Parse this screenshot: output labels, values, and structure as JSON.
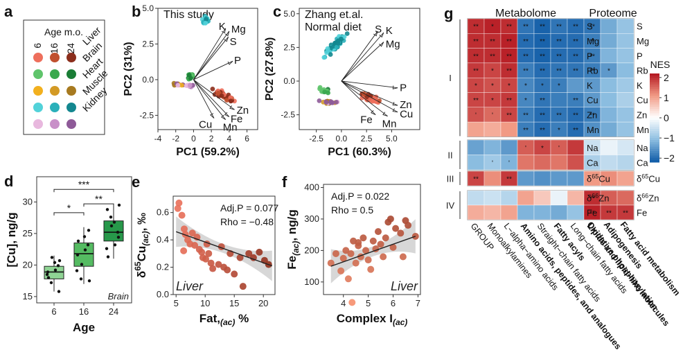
{
  "colors": {
    "liver": [
      "#ee6f5c",
      "#c0502f",
      "#8b2e1c"
    ],
    "brain": [
      "#5fc46b",
      "#3aa84e",
      "#1a7d36"
    ],
    "heart": [
      "#f2b01e",
      "#d39a25",
      "#a77a20"
    ],
    "muscle": [
      "#52d2d9",
      "#2ab0ba",
      "#13878f"
    ],
    "kidney": [
      "#e8b8de",
      "#c890c8",
      "#8e5a98"
    ],
    "box": [
      "#8fd494",
      "#55bb62",
      "#27984a"
    ]
  },
  "panel_a": {
    "letter": "a",
    "title": "Age m.o.",
    "ages": [
      "6",
      "16",
      "24"
    ],
    "organs": [
      "Liver",
      "Brain",
      "Heart",
      "Muscle",
      "Kidney"
    ]
  },
  "chart_data": [
    {
      "id": "b",
      "letter": "b",
      "type": "scatter",
      "title": "This study",
      "xlabel": "PC1 (59.2%)",
      "ylabel": "PC2 (31%)",
      "xlim": [
        -4,
        7.2
      ],
      "ylim": [
        -3.5,
        5.0
      ],
      "xticks": [
        "-4",
        "-2",
        "0",
        "2",
        "4",
        "6"
      ],
      "xtick_values": [
        -4,
        -2,
        0,
        2,
        4,
        6
      ],
      "yticks": [
        "-2.5",
        "0.0",
        "2.5",
        "5.0"
      ],
      "ytick_values": [
        -2.5,
        0,
        2.5,
        5
      ],
      "vectors": [
        {
          "label": "K",
          "x": 3.6,
          "y": 3.6
        },
        {
          "label": "Mg",
          "x": 4.0,
          "y": 3.4
        },
        {
          "label": "S",
          "x": 3.9,
          "y": 3.0
        },
        {
          "label": "P",
          "x": 4.4,
          "y": 1.3
        },
        {
          "label": "Zn",
          "x": 4.6,
          "y": -2.1
        },
        {
          "label": "Fe",
          "x": 4.0,
          "y": -2.6
        },
        {
          "label": "Cu",
          "x": 2.3,
          "y": -2.7
        },
        {
          "label": "Mn",
          "x": 3.6,
          "y": -2.8
        }
      ]
    },
    {
      "id": "c",
      "letter": "c",
      "type": "scatter",
      "title": "Zhang et.al.",
      "subtitle": "Normal diet",
      "xlabel": "PC1 (60.3%)",
      "ylabel": "PC2 (27.8%)",
      "xlim": [
        -4.2,
        7.8
      ],
      "ylim": [
        -3.6,
        5.4
      ],
      "xticks": [
        "-2.5",
        "0.0",
        "2.5",
        "5.0"
      ],
      "xtick_values": [
        -2.5,
        0,
        2.5,
        5
      ],
      "yticks": [
        "-2.5",
        "0.0",
        "2.5",
        "5.0"
      ],
      "ytick_values": [
        -2.5,
        0,
        2.5,
        5
      ],
      "vectors": [
        {
          "label": "S",
          "x": 3.6,
          "y": 3.7
        },
        {
          "label": "K",
          "x": 4.2,
          "y": 3.6
        },
        {
          "label": "Mg",
          "x": 4.2,
          "y": 2.9
        },
        {
          "label": "P",
          "x": 5.6,
          "y": -0.5
        },
        {
          "label": "Zn",
          "x": 5.6,
          "y": -1.8
        },
        {
          "label": "Cu",
          "x": 5.6,
          "y": -2.3
        },
        {
          "label": "Fe",
          "x": 3.4,
          "y": -2.5
        },
        {
          "label": "Mn",
          "x": 4.6,
          "y": -2.6
        }
      ]
    },
    {
      "id": "d",
      "letter": "d",
      "type": "box",
      "xlabel": "Age",
      "ylabel": "[Cu], ng/g",
      "annotation": "Brain",
      "categories": [
        "6",
        "16",
        "24"
      ],
      "ylim": [
        14,
        34
      ],
      "yticks": [
        "15",
        "20",
        "25",
        "30"
      ],
      "ytick_values": [
        15,
        20,
        25,
        30
      ],
      "boxes": [
        {
          "q1": 17.8,
          "median": 18.9,
          "q3": 19.8,
          "low": 15.8,
          "high": 21.5
        },
        {
          "q1": 19.8,
          "median": 21.8,
          "q3": 23.5,
          "low": 17.0,
          "high": 26.0
        },
        {
          "q1": 23.8,
          "median": 25.2,
          "q3": 27.0,
          "low": 21.0,
          "high": 29.5
        }
      ],
      "points": [
        [
          18.5,
          19.9,
          20.4,
          17.2,
          18.9,
          15.8,
          19.2,
          21.2,
          18.0,
          20.7
        ],
        [
          19.1,
          23.2,
          24.5,
          17.8,
          21.6,
          25.5,
          22.4,
          20.1,
          23.8,
          17.5
        ],
        [
          22.6,
          25.2,
          26.8,
          27.6,
          28.8,
          24.4,
          23.2,
          26.2,
          21.3,
          29.5
        ]
      ],
      "brackets": [
        {
          "from": 0,
          "to": 2,
          "y": 32.0,
          "label": "***"
        },
        {
          "from": 1,
          "to": 2,
          "y": 29.7,
          "label": "**"
        },
        {
          "from": 0,
          "to": 1,
          "y": 28.3,
          "label": "*"
        }
      ]
    },
    {
      "id": "e",
      "letter": "e",
      "type": "scatter",
      "xlabel": "Fat,(ac) %",
      "xlabel_main": "Fat,",
      "xlabel_sub": "(ac)",
      "xlabel_tail": " %",
      "ylabel": "δ65Cu(ac), ‰",
      "ylabel_main": "δ",
      "ylabel_sup": "65",
      "ylabel_mid": "Cu",
      "ylabel_sub": "(ac)",
      "ylabel_tail": ", ‰",
      "annotation": "Liver",
      "stats": {
        "p": "Adj.P  = 0.077",
        "rho": "Rho = −0.48"
      },
      "xlim": [
        4.5,
        22
      ],
      "ylim": [
        0,
        0.72
      ],
      "xticks": [
        "5",
        "10",
        "15",
        "20"
      ],
      "xtick_values": [
        5,
        10,
        15,
        20
      ],
      "yticks": [
        "0.0",
        "0.2",
        "0.4",
        "0.6"
      ],
      "ytick_values": [
        0,
        0.2,
        0.4,
        0.6
      ],
      "fit": {
        "x": [
          5,
          21.5
        ],
        "y": [
          0.46,
          0.21
        ]
      },
      "points": [
        [
          5.3,
          0.63
        ],
        [
          5.5,
          0.67
        ],
        [
          6.0,
          0.58
        ],
        [
          6.4,
          0.48
        ],
        [
          6.6,
          0.44
        ],
        [
          7.0,
          0.4
        ],
        [
          7.4,
          0.37
        ],
        [
          7.8,
          0.45
        ],
        [
          8.2,
          0.36
        ],
        [
          8.6,
          0.42
        ],
        [
          9.0,
          0.33
        ],
        [
          9.4,
          0.31
        ],
        [
          9.6,
          0.27
        ],
        [
          10.1,
          0.26
        ],
        [
          10.6,
          0.3
        ],
        [
          11.0,
          0.23
        ],
        [
          11.3,
          0.19
        ],
        [
          12.3,
          0.22
        ],
        [
          12.8,
          0.35
        ],
        [
          13.2,
          0.2
        ],
        [
          13.8,
          0.18
        ],
        [
          14.3,
          0.3
        ],
        [
          15.0,
          0.15
        ],
        [
          16.0,
          0.27
        ],
        [
          17.5,
          0.3
        ],
        [
          18.3,
          0.27
        ],
        [
          19.3,
          0.31
        ],
        [
          20.2,
          0.25
        ],
        [
          20.9,
          0.22
        ],
        [
          10.3,
          0.37
        ],
        [
          6.3,
          0.32
        ],
        [
          16.5,
          0.06
        ]
      ]
    },
    {
      "id": "f",
      "letter": "f",
      "type": "scatter",
      "xlabel": "Complex I(ac)",
      "xlabel_main": "Complex I",
      "xlabel_sub": "(ac)",
      "ylabel": "Fe(ac), ng/g",
      "ylabel_main": "Fe",
      "ylabel_sub": "(ac)",
      "ylabel_tail": ", ng/g",
      "annotation": "Liver",
      "stats": {
        "p": "Adj.P  = 0.022",
        "rho": "Rho = 0.5"
      },
      "xlim": [
        3.2,
        7.1
      ],
      "ylim": [
        60,
        410
      ],
      "xticks": [
        "4",
        "5",
        "6",
        "7"
      ],
      "xtick_values": [
        4,
        5,
        6,
        7
      ],
      "yticks": [
        "100",
        "200",
        "300",
        "400"
      ],
      "ytick_values": [
        100,
        200,
        300,
        400
      ],
      "fit": {
        "x": [
          3.5,
          6.9
        ],
        "y": [
          150,
          245
        ]
      },
      "points": [
        [
          3.5,
          160
        ],
        [
          3.7,
          190
        ],
        [
          3.9,
          135
        ],
        [
          4.0,
          175
        ],
        [
          4.1,
          200
        ],
        [
          4.2,
          110
        ],
        [
          4.3,
          190
        ],
        [
          4.4,
          230
        ],
        [
          4.5,
          160
        ],
        [
          4.6,
          215
        ],
        [
          4.7,
          180
        ],
        [
          4.8,
          240
        ],
        [
          4.9,
          200
        ],
        [
          5.0,
          170
        ],
        [
          5.1,
          140
        ],
        [
          5.2,
          230
        ],
        [
          5.3,
          205
        ],
        [
          5.4,
          260
        ],
        [
          5.5,
          220
        ],
        [
          5.6,
          180
        ],
        [
          5.7,
          240
        ],
        [
          5.8,
          290
        ],
        [
          5.9,
          300
        ],
        [
          6.0,
          210
        ],
        [
          6.1,
          270
        ],
        [
          6.3,
          255
        ],
        [
          6.4,
          180
        ],
        [
          6.5,
          295
        ],
        [
          6.6,
          280
        ],
        [
          6.9,
          245
        ],
        [
          4.35,
          35
        ],
        [
          4.6,
          225
        ]
      ]
    },
    {
      "id": "g",
      "letter": "g",
      "type": "heatmap",
      "metabolome_title": "Metabolome",
      "proteome_title": "Proteome",
      "legend_title": "NES",
      "legend_ticks": [
        "2",
        "1",
        "0",
        "−1",
        "−2"
      ],
      "legend_values": [
        2,
        1,
        0,
        -1,
        -2
      ],
      "vmin": -2.2,
      "vmax": 2.2,
      "metabolome_cols": [
        "GROUP",
        "Monoalkylamines",
        "L−alpha−amino acids",
        "Amino acids, peptides, and analogues",
        "Straight−chain fatty acids",
        "Fatty acyls",
        "Long−chain fatty acids",
        "Lipids and lipid−like molecules"
      ],
      "metabolome_bold": [
        false,
        false,
        false,
        true,
        false,
        true,
        false,
        true
      ],
      "proteome_cols": [
        "Oxidative phosphorylation",
        "Adipogenesis",
        "Fatty acid metabolism"
      ],
      "groups": [
        {
          "label": "I",
          "rows": [
            "S",
            "Mg",
            "P",
            "Rb",
            "K",
            "Cu",
            "Zn",
            "Mn"
          ]
        },
        {
          "label": "II",
          "rows": [
            "Na",
            "Ca"
          ]
        },
        {
          "label": "III",
          "rows": [
            "δ65Cu"
          ]
        },
        {
          "label": "IV",
          "rows": [
            "δ66Zn",
            "Fe"
          ]
        }
      ],
      "row_labels": [
        {
          "main": "S"
        },
        {
          "main": "Mg"
        },
        {
          "main": "P"
        },
        {
          "main": "Rb"
        },
        {
          "main": "K"
        },
        {
          "main": "Cu"
        },
        {
          "main": "Zn"
        },
        {
          "main": "Mn"
        },
        {
          "main": "Na"
        },
        {
          "main": "Ca"
        },
        {
          "pre": "δ",
          "sup": "65",
          "main": "Cu"
        },
        {
          "pre": "δ",
          "sup": "66",
          "main": "Zn"
        },
        {
          "main": "Fe"
        }
      ],
      "metabolome_values": [
        [
          2.0,
          2.1,
          2.0,
          -1.9,
          -2.1,
          -1.9,
          -2.0
        ],
        [
          2.0,
          2.0,
          2.1,
          -2.0,
          -2.1,
          -2.0,
          -2.0
        ],
        [
          2.0,
          2.0,
          2.1,
          -2.0,
          -2.1,
          -2.0,
          -2.0
        ],
        [
          1.9,
          1.8,
          2.0,
          -1.8,
          -2.0,
          -1.9,
          -1.9
        ],
        [
          1.8,
          1.7,
          1.8,
          -1.7,
          -1.9,
          -1.8,
          -1.5
        ],
        [
          1.8,
          1.8,
          1.9,
          -1.7,
          -1.9,
          -1.8,
          -1.8
        ],
        [
          1.7,
          1.5,
          1.8,
          -1.8,
          -2.0,
          -1.9,
          -2.0
        ],
        [
          1.0,
          0.9,
          1.1,
          -1.8,
          -2.0,
          -1.8,
          -2.0
        ],
        [
          -1.4,
          -1.2,
          -1.5,
          1.6,
          1.8,
          1.6,
          1.9
        ],
        [
          -1.1,
          -0.9,
          -1.2,
          1.4,
          1.5,
          1.4,
          1.7
        ],
        [
          1.8,
          1.2,
          1.9,
          -1.5,
          -1.6,
          -1.5,
          -1.5
        ],
        [
          -0.6,
          -0.5,
          -0.7,
          1.0,
          0.6,
          -0.2,
          0.8
        ],
        [
          0.9,
          0.8,
          1.0,
          -1.2,
          -1.2,
          -1.3,
          -1.0
        ]
      ],
      "metabolome_labels": [
        [
          "**",
          "*",
          "**",
          "**",
          "**",
          "**",
          "**"
        ],
        [
          "**",
          "**",
          "**",
          "**",
          "**",
          "**",
          "**"
        ],
        [
          "**",
          "**",
          "**",
          "**",
          "**",
          "**",
          "**"
        ],
        [
          "**",
          "*",
          "**",
          "**",
          "**",
          "**",
          "**"
        ],
        [
          "*",
          "*",
          "*",
          "*",
          "*",
          "*",
          ""
        ],
        [
          "**",
          "*",
          "**",
          "*",
          "**",
          "",
          "**"
        ],
        [
          "'",
          "'",
          "**",
          "**",
          "**",
          "**",
          "**"
        ],
        [
          "",
          "",
          "",
          "**",
          "**",
          "*",
          "**"
        ],
        [
          "",
          "",
          "",
          "'",
          "*",
          "'",
          ""
        ],
        [
          "",
          "'",
          "'",
          "",
          "",
          "",
          ""
        ],
        [
          "**",
          "",
          "**",
          "",
          "",
          "",
          ""
        ],
        [
          "",
          "",
          "",
          "",
          "",
          "",
          ""
        ],
        [
          "",
          "",
          "",
          "",
          "",
          "",
          ""
        ]
      ],
      "proteome_values": [
        [
          -1.9,
          -1.3,
          -1.0
        ],
        [
          -1.8,
          -1.3,
          -1.0
        ],
        [
          -1.8,
          -1.2,
          -1.0
        ],
        [
          -1.8,
          -1.5,
          -1.1
        ],
        [
          -1.5,
          -1.1,
          -0.9
        ],
        [
          -1.5,
          -1.1,
          -0.8
        ],
        [
          -1.8,
          -1.2,
          -1.0
        ],
        [
          -1.6,
          -1.3,
          -1.0
        ],
        [
          -0.5,
          -0.2,
          -0.4
        ],
        [
          -0.8,
          -0.6,
          -0.7
        ],
        [
          1.1,
          1.2,
          1.0
        ],
        [
          2.0,
          1.6,
          1.5
        ],
        [
          2.1,
          1.9,
          1.9
        ]
      ],
      "proteome_labels": [
        [
          "**",
          "",
          ""
        ],
        [
          "**",
          "",
          ""
        ],
        [
          "**",
          "",
          ""
        ],
        [
          "**",
          "*",
          ""
        ],
        [
          "",
          "",
          ""
        ],
        [
          "",
          "",
          ""
        ],
        [
          "**",
          "",
          ""
        ],
        [
          "-",
          "",
          ""
        ],
        [
          "",
          "",
          ""
        ],
        [
          "",
          "",
          ""
        ],
        [
          "",
          "",
          ""
        ],
        [
          "**",
          "",
          ""
        ],
        [
          "**",
          "**",
          "**"
        ]
      ]
    }
  ]
}
